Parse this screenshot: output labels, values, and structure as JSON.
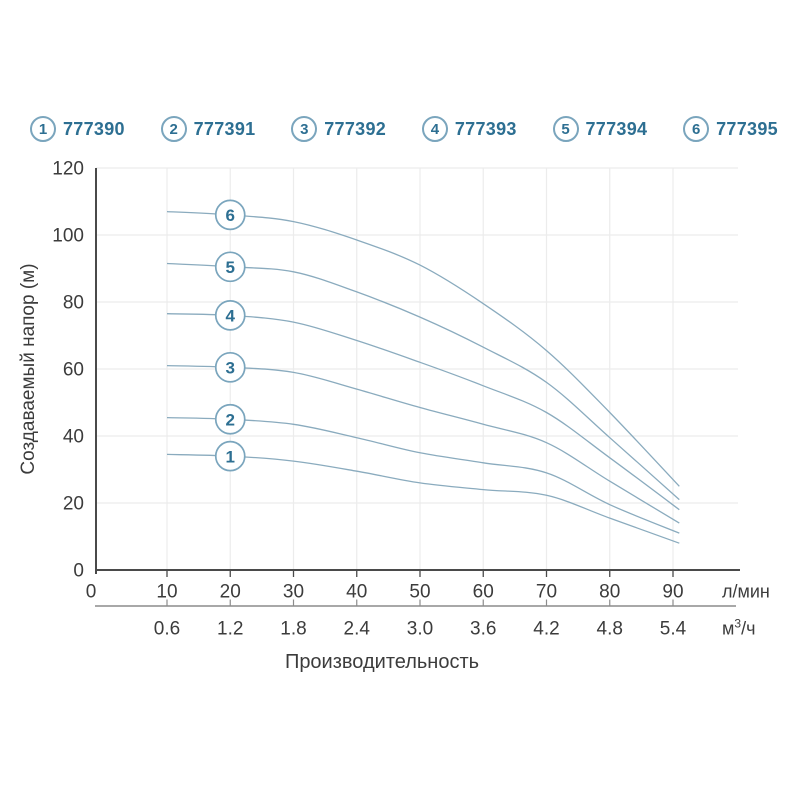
{
  "legend": {
    "items": [
      {
        "number": "1",
        "code": "777390"
      },
      {
        "number": "2",
        "code": "777391"
      },
      {
        "number": "3",
        "code": "777392"
      },
      {
        "number": "4",
        "code": "777393"
      },
      {
        "number": "5",
        "code": "777394"
      },
      {
        "number": "6",
        "code": "777395"
      }
    ]
  },
  "chart_data": {
    "type": "line",
    "title": "",
    "xlabel": "Производительность",
    "ylabel": "Создаваемый напор (м)",
    "x_unit_primary": "л/мин",
    "x_unit_secondary": "м³/ч",
    "x_ticks_primary": [
      0,
      10,
      20,
      30,
      40,
      50,
      60,
      70,
      80,
      90
    ],
    "x_ticks_secondary": [
      "0.6",
      "1.2",
      "1.8",
      "2.4",
      "3.0",
      "3.6",
      "4.2",
      "4.8",
      "5.4"
    ],
    "y_ticks": [
      0,
      20,
      40,
      60,
      80,
      100,
      120
    ],
    "ylim": [
      0,
      120
    ],
    "xlim_lmin": [
      0,
      93
    ],
    "grid": true,
    "marker_x": 20,
    "x": [
      10,
      20,
      30,
      40,
      50,
      60,
      70,
      80,
      91
    ],
    "series": [
      {
        "name": "1",
        "code": "777390",
        "values": [
          34.5,
          34,
          32.5,
          29.5,
          26,
          24,
          22.3,
          15.5,
          8
        ]
      },
      {
        "name": "2",
        "code": "777391",
        "values": [
          45.5,
          45,
          43.5,
          39.5,
          35,
          32,
          29,
          19.5,
          11
        ]
      },
      {
        "name": "3",
        "code": "777392",
        "values": [
          61,
          60.5,
          59,
          54,
          48.5,
          43.5,
          38,
          26.5,
          14
        ]
      },
      {
        "name": "4",
        "code": "777393",
        "values": [
          76.5,
          76,
          74,
          68.5,
          62,
          55,
          47,
          33.5,
          18
        ]
      },
      {
        "name": "5",
        "code": "777394",
        "values": [
          91.5,
          90.5,
          89,
          83,
          75.5,
          66.5,
          56,
          39.5,
          21
        ]
      },
      {
        "name": "6",
        "code": "777395",
        "values": [
          107,
          106,
          104,
          98.5,
          91,
          79.5,
          65.5,
          47,
          25
        ]
      }
    ],
    "legend_position": "top",
    "colors": {
      "accent": "#2d6f92",
      "curve": "#8aabbe",
      "marker_border": "#7aa5bd",
      "grid": "#ececec",
      "axis": "#4a4a4a",
      "axis_secondary": "#8c8c8c",
      "text": "#3c3c3c"
    }
  }
}
